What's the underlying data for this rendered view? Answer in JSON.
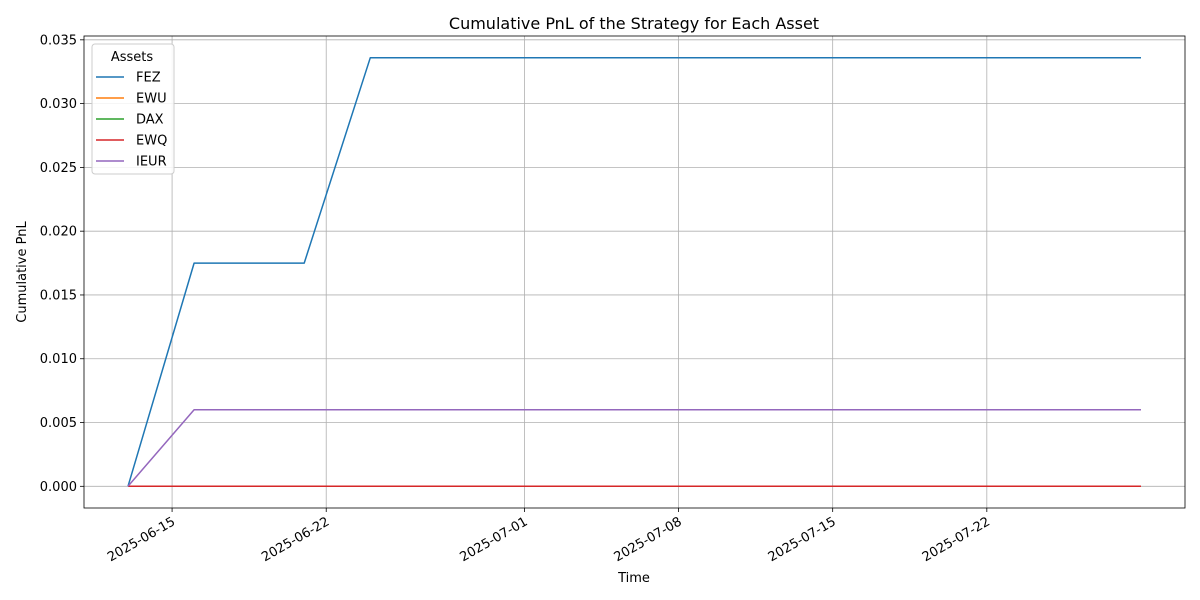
{
  "chart_data": {
    "type": "line",
    "title": "Cumulative PnL of the Strategy for Each Asset",
    "xlabel": "Time",
    "ylabel": "Cumulative PnL",
    "xlim": [
      "2025-06-11",
      "2025-07-31"
    ],
    "ylim": [
      -0.0017,
      0.0353
    ],
    "xticks": [
      "2025-06-15",
      "2025-06-22",
      "2025-07-01",
      "2025-07-08",
      "2025-07-15",
      "2025-07-22"
    ],
    "yticks": [
      "0.000",
      "0.005",
      "0.010",
      "0.015",
      "0.020",
      "0.025",
      "0.030",
      "0.035"
    ],
    "grid": true,
    "legend": {
      "title": "Assets",
      "placement": "top-left"
    },
    "series": [
      {
        "name": "FEZ",
        "color": "#1f77b4",
        "points": [
          [
            "2025-06-13",
            0.0
          ],
          [
            "2025-06-16",
            0.0175
          ],
          [
            "2025-06-21",
            0.0175
          ],
          [
            "2025-06-24",
            0.0336
          ],
          [
            "2025-07-29",
            0.0336
          ]
        ]
      },
      {
        "name": "EWU",
        "color": "#ff7f0e",
        "points": [
          [
            "2025-06-13",
            0.0
          ],
          [
            "2025-07-29",
            0.0
          ]
        ]
      },
      {
        "name": "DAX",
        "color": "#2ca02c",
        "points": [
          [
            "2025-06-13",
            0.0
          ],
          [
            "2025-07-29",
            0.0
          ]
        ]
      },
      {
        "name": "EWQ",
        "color": "#d62728",
        "points": [
          [
            "2025-06-13",
            0.0
          ],
          [
            "2025-07-29",
            0.0
          ]
        ]
      },
      {
        "name": "IEUR",
        "color": "#9467bd",
        "points": [
          [
            "2025-06-13",
            0.0
          ],
          [
            "2025-06-16",
            0.006
          ],
          [
            "2025-07-29",
            0.006
          ]
        ]
      }
    ]
  }
}
